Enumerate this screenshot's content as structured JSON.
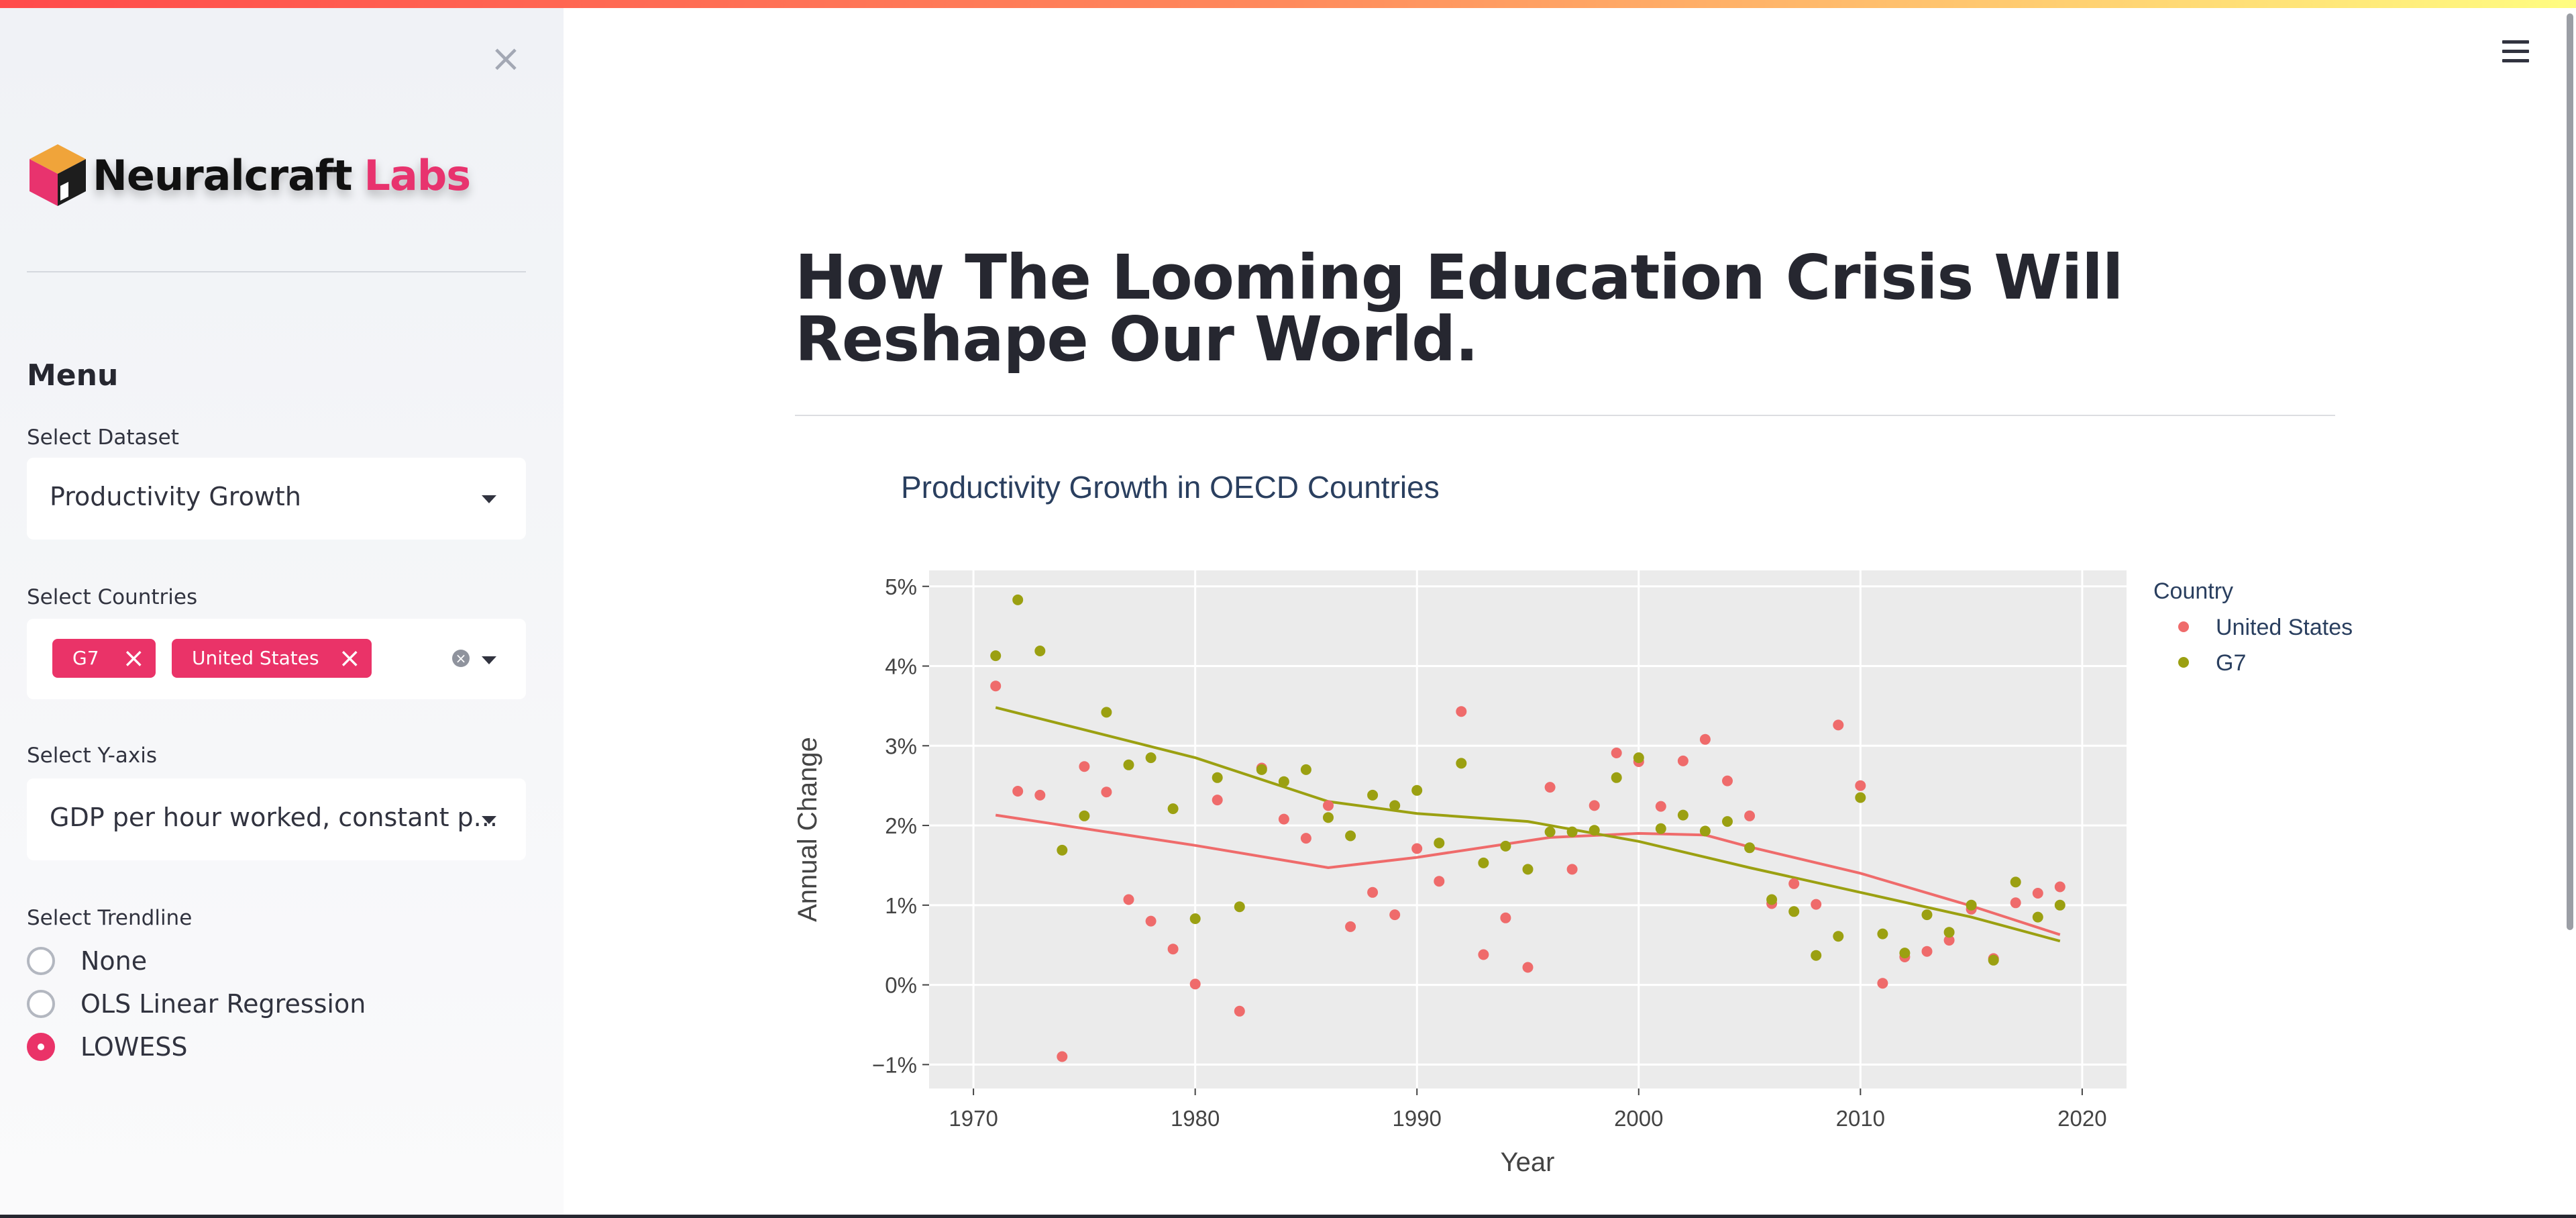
{
  "sidebar": {
    "close_icon": "close-icon",
    "logo": {
      "name": "Neuralcraft",
      "suffix": "Labs",
      "icon": "cube-logo-icon"
    },
    "menu_title": "Menu",
    "dataset": {
      "label": "Select Dataset",
      "value": "Productivity Growth"
    },
    "countries": {
      "label": "Select Countries",
      "chips": [
        "G7",
        "United States"
      ]
    },
    "yaxis": {
      "label": "Select Y-axis",
      "value": "GDP per hour worked, constant p..."
    },
    "trendline": {
      "label": "Select Trendline",
      "options": [
        "None",
        "OLS Linear Regression",
        "LOWESS"
      ],
      "selected": "LOWESS"
    }
  },
  "header": {
    "menu_icon": "hamburger-icon"
  },
  "main": {
    "title": "How The Looming Education Crisis Will Reshape Our World."
  },
  "colors": {
    "accent": "#ea3368",
    "us": "#ef6b6b",
    "g7": "#9ba011",
    "plot_bg": "#ebebeb"
  },
  "chart_data": {
    "type": "scatter",
    "title": "Productivity Growth in OECD Countries",
    "xlabel": "Year",
    "ylabel": "Annual Change",
    "xlim": [
      1968,
      2022
    ],
    "ylim": [
      -1.3,
      5.2
    ],
    "x_ticks": [
      1970,
      1980,
      1990,
      2000,
      2010,
      2020
    ],
    "y_ticks": [
      -1,
      0,
      1,
      2,
      3,
      4,
      5
    ],
    "y_tick_labels": [
      "−1%",
      "0%",
      "1%",
      "2%",
      "3%",
      "4%",
      "5%"
    ],
    "grid": true,
    "legend": {
      "title": "Country",
      "position": "right"
    },
    "series": [
      {
        "name": "United States",
        "color": "#ef6b6b",
        "x": [
          1971,
          1972,
          1973,
          1974,
          1975,
          1976,
          1977,
          1978,
          1979,
          1980,
          1981,
          1982,
          1983,
          1984,
          1985,
          1986,
          1987,
          1988,
          1989,
          1990,
          1991,
          1992,
          1993,
          1994,
          1995,
          1996,
          1997,
          1998,
          1999,
          2000,
          2001,
          2002,
          2003,
          2004,
          2005,
          2006,
          2007,
          2008,
          2009,
          2010,
          2011,
          2012,
          2013,
          2014,
          2015,
          2016,
          2017,
          2018,
          2019
        ],
        "y": [
          3.75,
          2.43,
          2.38,
          -0.9,
          2.74,
          2.42,
          1.07,
          0.8,
          0.45,
          0.01,
          2.32,
          -0.33,
          2.72,
          2.08,
          1.84,
          2.25,
          0.73,
          1.16,
          0.88,
          1.71,
          1.3,
          3.43,
          0.38,
          0.84,
          0.22,
          2.48,
          1.45,
          2.25,
          2.91,
          2.8,
          2.24,
          2.81,
          3.08,
          2.56,
          2.12,
          1.02,
          1.27,
          1.01,
          3.26,
          2.5,
          0.02,
          0.35,
          0.42,
          0.56,
          0.95,
          0.33,
          1.03,
          1.15,
          1.23
        ],
        "trend": {
          "x": [
            1971,
            1980,
            1986,
            1990,
            1996,
            2000,
            2003,
            2005,
            2010,
            2015,
            2019
          ],
          "y": [
            2.13,
            1.75,
            1.47,
            1.6,
            1.85,
            1.9,
            1.88,
            1.73,
            1.4,
            0.99,
            0.63
          ]
        }
      },
      {
        "name": "G7",
        "color": "#9ba011",
        "x": [
          1971,
          1972,
          1973,
          1974,
          1975,
          1976,
          1977,
          1978,
          1979,
          1980,
          1981,
          1982,
          1983,
          1984,
          1985,
          1986,
          1987,
          1988,
          1989,
          1990,
          1991,
          1992,
          1993,
          1994,
          1995,
          1996,
          1997,
          1998,
          1999,
          2000,
          2001,
          2002,
          2003,
          2004,
          2005,
          2006,
          2007,
          2008,
          2009,
          2010,
          2011,
          2012,
          2013,
          2014,
          2015,
          2016,
          2017,
          2018,
          2019
        ],
        "y": [
          4.13,
          4.83,
          4.19,
          1.69,
          2.12,
          3.42,
          2.76,
          2.85,
          2.21,
          0.83,
          2.6,
          0.98,
          2.7,
          2.55,
          2.7,
          2.1,
          1.87,
          2.38,
          2.25,
          2.44,
          1.78,
          2.78,
          1.53,
          1.74,
          1.45,
          1.92,
          1.92,
          1.94,
          2.6,
          2.85,
          1.96,
          2.13,
          1.93,
          2.05,
          1.72,
          1.07,
          0.92,
          0.37,
          0.61,
          2.35,
          0.64,
          0.4,
          0.88,
          0.66,
          1.0,
          0.31,
          1.29,
          0.85,
          1.0
        ],
        "trend": {
          "x": [
            1971,
            1980,
            1986,
            1990,
            1995,
            2000,
            2005,
            2010,
            2015,
            2019
          ],
          "y": [
            3.48,
            2.85,
            2.3,
            2.15,
            2.05,
            1.8,
            1.47,
            1.16,
            0.85,
            0.55
          ]
        }
      }
    ]
  }
}
